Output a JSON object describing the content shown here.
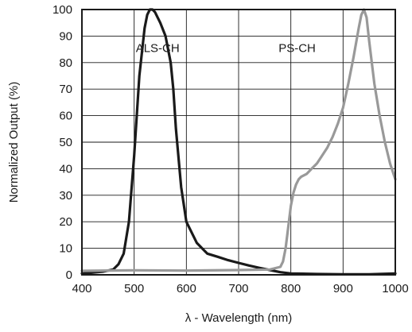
{
  "chart_data": {
    "type": "line",
    "title": "",
    "xlabel": "λ - Wavelength (nm)",
    "ylabel": "Normalized Output (%)",
    "xlim": [
      400,
      1000
    ],
    "ylim": [
      0,
      100
    ],
    "xticks": [
      400,
      500,
      600,
      700,
      800,
      900,
      1000
    ],
    "yticks": [
      0,
      10,
      20,
      30,
      40,
      50,
      60,
      70,
      80,
      90,
      100
    ],
    "grid": true,
    "legend": "none",
    "series": [
      {
        "name": "ALS-CH",
        "color": "#1a1a1a",
        "x": [
          400,
          420,
          440,
          460,
          470,
          480,
          490,
          500,
          510,
          520,
          525,
          530,
          535,
          540,
          550,
          560,
          570,
          575,
          580,
          590,
          600,
          620,
          640,
          660,
          680,
          700,
          720,
          740,
          760,
          780,
          800,
          850,
          900,
          950,
          1000
        ],
        "y": [
          0.5,
          0.8,
          1.2,
          2,
          4,
          8,
          20,
          45,
          75,
          93,
          98,
          100,
          100,
          99,
          95,
          90,
          80,
          70,
          55,
          33,
          20,
          12,
          8,
          6.8,
          5.5,
          4.5,
          3.5,
          2.6,
          1.8,
          1,
          0.5,
          0.3,
          0.2,
          0.2,
          0.5
        ],
        "label_x": 545,
        "label_y": 84
      },
      {
        "name": "PS-CH",
        "color": "#999999",
        "x": [
          400,
          500,
          600,
          700,
          760,
          780,
          785,
          790,
          795,
          800,
          805,
          810,
          815,
          820,
          830,
          840,
          850,
          860,
          870,
          880,
          890,
          900,
          910,
          920,
          930,
          935,
          940,
          945,
          950,
          960,
          970,
          980,
          990,
          1000
        ],
        "y": [
          1.5,
          1.7,
          1.6,
          1.8,
          2,
          3,
          5,
          10,
          18,
          26,
          31,
          34,
          36,
          37,
          38,
          40,
          42,
          45,
          48,
          52,
          57,
          63,
          72,
          82,
          93,
          98,
          100,
          97,
          88,
          72,
          60,
          50,
          42,
          36
        ],
        "label_x": 812,
        "label_y": 84
      }
    ]
  }
}
